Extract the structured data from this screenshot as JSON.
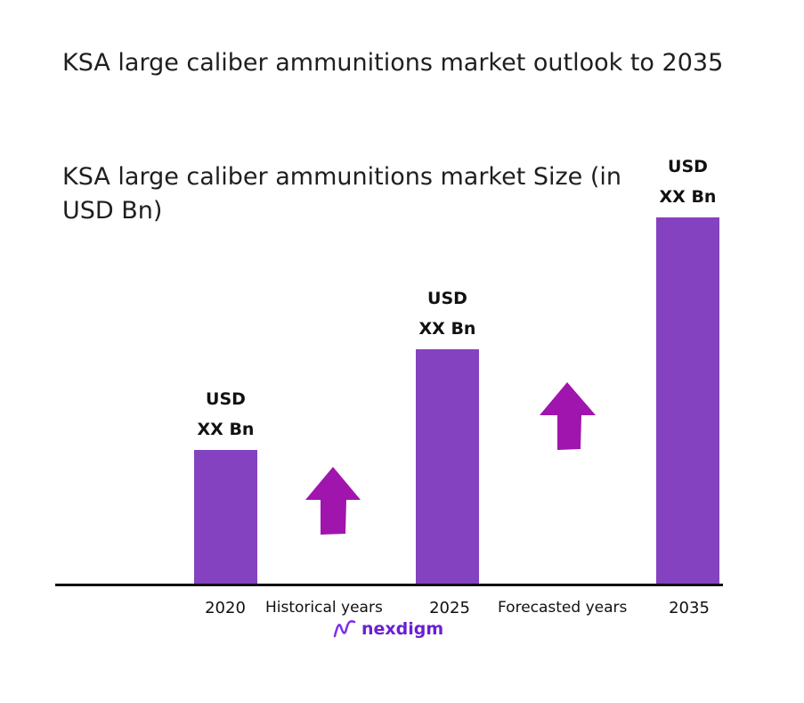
{
  "header": {
    "title": "KSA large caliber ammunitions market outlook to 2035",
    "subtitle": "KSA large caliber ammunitions market Size (in USD Bn)"
  },
  "colors": {
    "bar": "#8542c0",
    "arrow": "#a015ad",
    "axis": "#111111",
    "logo": "#6a1fd1"
  },
  "chart_data": {
    "type": "bar",
    "title": "KSA large caliber ammunitions market Size (in USD Bn)",
    "categories": [
      "2020",
      "2025",
      "2035"
    ],
    "values": [
      1.0,
      1.75,
      2.73
    ],
    "value_note": "relative bar heights (values unlabeled)",
    "data_labels": [
      {
        "line1": "USD",
        "line2": "XX Bn"
      },
      {
        "line1": "USD",
        "line2": "XX Bn"
      },
      {
        "line1": "USD",
        "line2": "XX Bn"
      }
    ],
    "period_labels": [
      "Historical years",
      "Forecasted years"
    ]
  },
  "logo": {
    "text": "nexdigm",
    "icon": "nexdigm-wave-icon"
  }
}
